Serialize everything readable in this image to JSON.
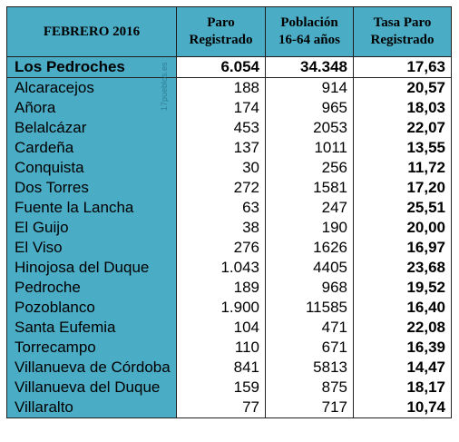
{
  "header": {
    "month": "FEBRERO 2016",
    "col_paro": [
      "Paro",
      "Registrado"
    ],
    "col_poblacion": [
      "Población",
      "16-64 años"
    ],
    "col_tasa": [
      "Tasa Paro",
      "Registrado"
    ]
  },
  "watermark": "17pueblos.es",
  "rows": [
    {
      "name": "Los Pedroches",
      "paro": "6.054",
      "poblacion": "34.348",
      "tasa": "17,63"
    },
    {
      "name": "Alcaracejos",
      "paro": "188",
      "poblacion": "914",
      "tasa": "20,57"
    },
    {
      "name": "Añora",
      "paro": "174",
      "poblacion": "965",
      "tasa": "18,03"
    },
    {
      "name": "Belalcázar",
      "paro": "453",
      "poblacion": "2053",
      "tasa": "22,07"
    },
    {
      "name": "Cardeña",
      "paro": "137",
      "poblacion": "1011",
      "tasa": "13,55"
    },
    {
      "name": "Conquista",
      "paro": "30",
      "poblacion": "256",
      "tasa": "11,72"
    },
    {
      "name": "Dos Torres",
      "paro": "272",
      "poblacion": "1581",
      "tasa": "17,20"
    },
    {
      "name": "Fuente la Lancha",
      "paro": "63",
      "poblacion": "247",
      "tasa": "25,51"
    },
    {
      "name": "El Guijo",
      "paro": "38",
      "poblacion": "190",
      "tasa": "20,00"
    },
    {
      "name": "El Viso",
      "paro": "276",
      "poblacion": "1626",
      "tasa": "16,97"
    },
    {
      "name": "Hinojosa del Duque",
      "paro": "1.043",
      "poblacion": "4405",
      "tasa": "23,68"
    },
    {
      "name": "Pedroche",
      "paro": "189",
      "poblacion": "968",
      "tasa": "19,52"
    },
    {
      "name": "Pozoblanco",
      "paro": "1.900",
      "poblacion": "11585",
      "tasa": "16,40"
    },
    {
      "name": "Santa Eufemia",
      "paro": "104",
      "poblacion": "471",
      "tasa": "22,08"
    },
    {
      "name": "Torrecampo",
      "paro": "110",
      "poblacion": "671",
      "tasa": "16,39"
    },
    {
      "name": "Villanueva de Córdoba",
      "paro": "841",
      "poblacion": "5813",
      "tasa": "14,47"
    },
    {
      "name": "Villanueva del Duque",
      "paro": "159",
      "poblacion": "875",
      "tasa": "18,17"
    },
    {
      "name": "Villaralto",
      "paro": "77",
      "poblacion": "717",
      "tasa": "10,74"
    }
  ]
}
